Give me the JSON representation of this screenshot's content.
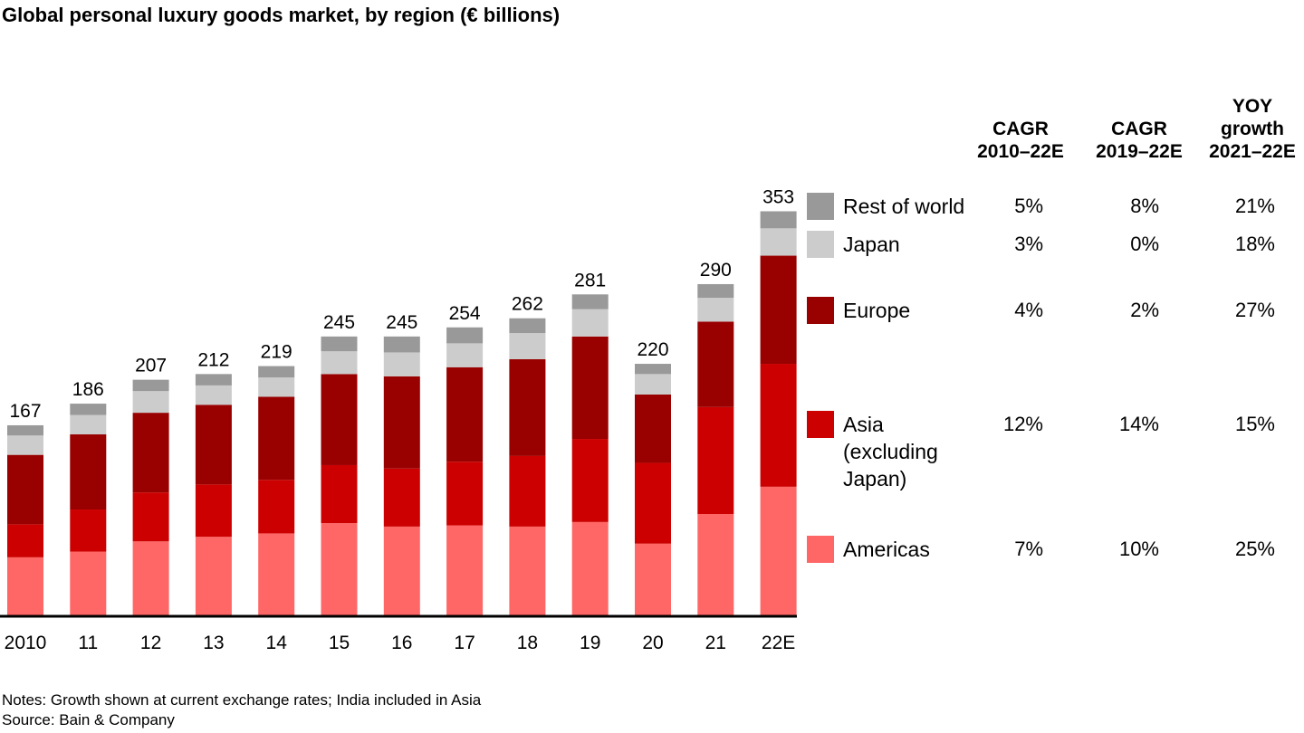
{
  "chart_data": {
    "type": "bar",
    "stacked": true,
    "title": "Global personal luxury goods market, by region (€ billions)",
    "categories": [
      "2010",
      "11",
      "12",
      "13",
      "14",
      "15",
      "16",
      "17",
      "18",
      "19",
      "20",
      "21",
      "22E"
    ],
    "totals": [
      "167",
      "186",
      "207",
      "212",
      "219",
      "245",
      "245",
      "254",
      "262",
      "281",
      "220",
      "290",
      "353"
    ],
    "series": [
      {
        "name": "Americas",
        "color": "#ff6666",
        "values": [
          51,
          56,
          65,
          69,
          72,
          81,
          78,
          79,
          78,
          82,
          63,
          89,
          113
        ]
      },
      {
        "name": "Asia (excluding Japan)",
        "color": "#cc0000",
        "values": [
          29,
          37,
          43,
          46,
          47,
          51,
          51,
          56,
          62,
          73,
          71,
          94,
          108
        ]
      },
      {
        "name": "Europe",
        "color": "#990000",
        "values": [
          61,
          66,
          70,
          70,
          73,
          80,
          81,
          83,
          85,
          90,
          60,
          75,
          95
        ]
      },
      {
        "name": "Japan",
        "color": "#cccccc",
        "values": [
          17,
          17,
          19,
          17,
          17,
          20,
          21,
          21,
          23,
          24,
          18,
          21,
          24
        ]
      },
      {
        "name": "Rest of world",
        "color": "#999999",
        "values": [
          9,
          10,
          10,
          10,
          10,
          13,
          14,
          14,
          13,
          13,
          9,
          12,
          15
        ]
      }
    ],
    "ylim": [
      0,
      353
    ],
    "xlabel": "",
    "ylabel": "",
    "legend": "right"
  },
  "table": {
    "headers": [
      {
        "line1": "",
        "line2": "CAGR",
        "line3": "2010–22E"
      },
      {
        "line1": "",
        "line2": "CAGR",
        "line3": "2019–22E"
      },
      {
        "line1": "YOY",
        "line2": "growth",
        "line3": "2021–22E"
      }
    ],
    "rows": [
      {
        "label": "Rest of world",
        "color": "#999999",
        "cagr_2010_22": "5%",
        "cagr_2019_22": "8%",
        "yoy": "21%"
      },
      {
        "label": "Japan",
        "color": "#cccccc",
        "cagr_2010_22": "3%",
        "cagr_2019_22": "0%",
        "yoy": "18%"
      },
      {
        "label": "Europe",
        "color": "#990000",
        "cagr_2010_22": "4%",
        "cagr_2019_22": "2%",
        "yoy": "27%"
      },
      {
        "label_lines": [
          "Asia",
          "(excluding",
          "Japan)"
        ],
        "color": "#cc0000",
        "cagr_2010_22": "12%",
        "cagr_2019_22": "14%",
        "yoy": "15%"
      },
      {
        "label": "Americas",
        "color": "#ff6666",
        "cagr_2010_22": "7%",
        "cagr_2019_22": "10%",
        "yoy": "25%"
      }
    ]
  },
  "notes": {
    "line1": "Notes: Growth shown at current exchange rates; India included in Asia",
    "line2": "Source: Bain & Company"
  }
}
